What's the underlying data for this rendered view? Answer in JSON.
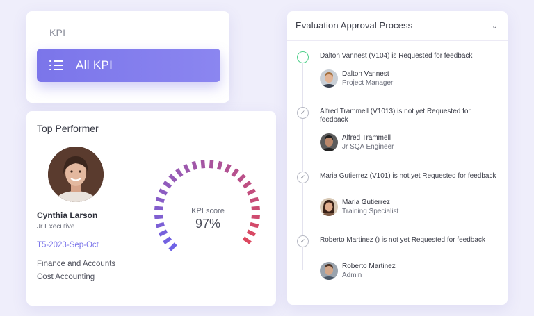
{
  "kpi_card": {
    "title": "KPI",
    "button_label": "All KPI"
  },
  "top_performer": {
    "title": "Top Performer",
    "name": "Cynthia Larson",
    "role": "Jr Executive",
    "period": "T5-2023-Sep-Oct",
    "department": "Finance and Accounts",
    "sub_department": "Cost Accounting",
    "score_label": "KPI score",
    "score_value": "97%",
    "score_fraction": 0.97
  },
  "evaluation": {
    "title": "Evaluation Approval Process",
    "steps": [
      {
        "text": "Dalton Vannest (V104) is Requested for feedback",
        "name": "Dalton Vannest",
        "role": "Project Manager",
        "active": true
      },
      {
        "text": "Alfred Trammell (V1013) is not yet Requested for feedback",
        "name": "Alfred Trammell",
        "role": "Jr SQA Engineer",
        "active": false
      },
      {
        "text": "Maria Gutierrez (V101) is not yet Requested for feedback",
        "name": "Maria Gutierrez",
        "role": "Training Specialist",
        "active": false
      },
      {
        "text": "Roberto Martinez () is not yet Requested for feedback",
        "name": "Roberto Martinez",
        "role": "Admin",
        "active": false
      }
    ]
  },
  "colors": {
    "accent": "#7b75ea",
    "gauge_start": "#6f63e6",
    "gauge_end": "#e0475a",
    "active_step": "#4fcf8a"
  }
}
